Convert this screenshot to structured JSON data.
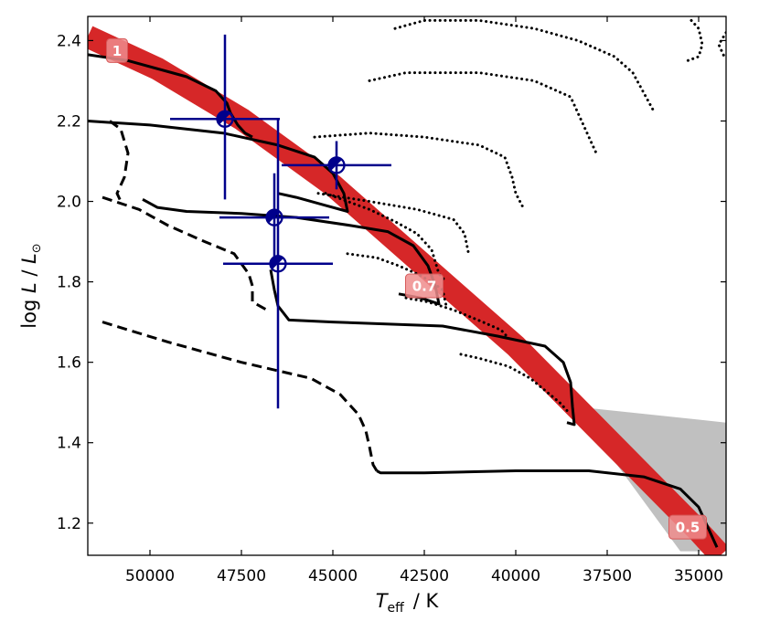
{
  "chart_data": {
    "type": "scatter",
    "title": "",
    "xlabel_main": "T",
    "xlabel_sub": "eff",
    "xlabel_unit": "/  K",
    "ylabel_prefix": "log ",
    "ylabel_L1": "L",
    "ylabel_slash": " / ",
    "ylabel_L2": "L",
    "ylabel_sun": "⊙",
    "xlim": [
      51700,
      34250
    ],
    "ylim": [
      1.12,
      2.46
    ],
    "x_ticks": [
      50000,
      47500,
      45000,
      42500,
      40000,
      37500,
      35000
    ],
    "x_tick_labels": [
      "50000",
      "47500",
      "45000",
      "42500",
      "40000",
      "37500",
      "35000"
    ],
    "y_ticks": [
      1.2,
      1.4,
      1.6,
      1.8,
      2.0,
      2.2,
      2.4
    ],
    "y_tick_labels": [
      "1.2",
      "1.4",
      "1.6",
      "1.8",
      "2.0",
      "2.2",
      "2.4"
    ],
    "red_band": {
      "color": "#d62728",
      "points": [
        [
          51700,
          2.41
        ],
        [
          49800,
          2.33
        ],
        [
          47500,
          2.205
        ],
        [
          45000,
          2.04
        ],
        [
          42500,
          1.84
        ],
        [
          40000,
          1.64
        ],
        [
          37500,
          1.41
        ],
        [
          35000,
          1.18
        ],
        [
          34400,
          1.12
        ]
      ],
      "markers": [
        {
          "label": "1",
          "x": 50900,
          "y": 2.375
        },
        {
          "label": "0.7",
          "x": 42500,
          "y": 1.79
        },
        {
          "label": "0.5",
          "x": 35300,
          "y": 1.19
        }
      ]
    },
    "shaded_region": {
      "color": "#c0c0c0",
      "points": [
        [
          38400,
          1.49
        ],
        [
          34250,
          1.45
        ],
        [
          34250,
          1.13
        ],
        [
          35500,
          1.13
        ]
      ]
    },
    "series": [
      {
        "name": "track_solid_1",
        "style": "solid",
        "points": [
          [
            51700,
            2.365
          ],
          [
            50600,
            2.35
          ],
          [
            49000,
            2.31
          ],
          [
            48200,
            2.275
          ],
          [
            47900,
            2.245
          ],
          [
            47800,
            2.22
          ],
          [
            47600,
            2.19
          ],
          [
            47400,
            2.17
          ],
          [
            47200,
            2.16
          ]
        ]
      },
      {
        "name": "track_solid_2",
        "style": "solid",
        "points": [
          [
            51700,
            2.2
          ],
          [
            50000,
            2.19
          ],
          [
            48000,
            2.17
          ],
          [
            46500,
            2.14
          ],
          [
            45500,
            2.11
          ],
          [
            45000,
            2.07
          ],
          [
            44700,
            2.02
          ],
          [
            44600,
            1.975
          ],
          [
            45200,
            1.99
          ],
          [
            46000,
            2.01
          ],
          [
            46500,
            2.02
          ]
        ]
      },
      {
        "name": "track_solid_3",
        "style": "solid",
        "points": [
          [
            50200,
            2.005
          ],
          [
            49800,
            1.985
          ],
          [
            49000,
            1.975
          ],
          [
            47500,
            1.97
          ],
          [
            46000,
            1.96
          ],
          [
            44500,
            1.94
          ],
          [
            43500,
            1.925
          ],
          [
            42800,
            1.89
          ],
          [
            42400,
            1.84
          ],
          [
            42200,
            1.79
          ],
          [
            42100,
            1.745
          ],
          [
            42600,
            1.76
          ],
          [
            43200,
            1.77
          ]
        ]
      },
      {
        "name": "track_solid_4",
        "style": "solid",
        "points": [
          [
            46700,
            1.83
          ],
          [
            46600,
            1.78
          ],
          [
            46500,
            1.74
          ],
          [
            46200,
            1.705
          ],
          [
            45000,
            1.7
          ],
          [
            42000,
            1.69
          ],
          [
            40500,
            1.665
          ],
          [
            39200,
            1.64
          ],
          [
            38700,
            1.6
          ],
          [
            38500,
            1.55
          ],
          [
            38450,
            1.49
          ],
          [
            38400,
            1.445
          ],
          [
            38600,
            1.45
          ]
        ]
      },
      {
        "name": "track_solid_5",
        "style": "solid",
        "points": [
          [
            43800,
            1.33
          ],
          [
            43700,
            1.325
          ],
          [
            42500,
            1.325
          ],
          [
            40000,
            1.33
          ],
          [
            38000,
            1.33
          ],
          [
            36500,
            1.315
          ],
          [
            35500,
            1.285
          ],
          [
            35000,
            1.24
          ],
          [
            34700,
            1.18
          ],
          [
            34500,
            1.14
          ]
        ]
      },
      {
        "name": "track_dashed_1",
        "style": "dashed",
        "points": [
          [
            51100,
            2.2
          ],
          [
            50800,
            2.18
          ],
          [
            50600,
            2.12
          ],
          [
            50700,
            2.06
          ],
          [
            50900,
            2.02
          ],
          [
            50800,
            2.0
          ]
        ]
      },
      {
        "name": "track_dashed_2",
        "style": "dashed",
        "points": [
          [
            51300,
            2.01
          ],
          [
            50300,
            1.98
          ],
          [
            49500,
            1.94
          ],
          [
            48500,
            1.9
          ],
          [
            47700,
            1.87
          ],
          [
            47300,
            1.82
          ],
          [
            47200,
            1.79
          ],
          [
            47200,
            1.75
          ],
          [
            46800,
            1.73
          ]
        ]
      },
      {
        "name": "track_dashed_3",
        "style": "dashed",
        "points": [
          [
            51300,
            1.7
          ],
          [
            49500,
            1.65
          ],
          [
            47500,
            1.6
          ],
          [
            45600,
            1.56
          ],
          [
            44800,
            1.52
          ],
          [
            44300,
            1.47
          ],
          [
            44100,
            1.43
          ],
          [
            44000,
            1.39
          ],
          [
            43900,
            1.345
          ],
          [
            43800,
            1.33
          ]
        ]
      },
      {
        "name": "track_dotted_1",
        "style": "dotted",
        "points": [
          [
            43300,
            2.43
          ],
          [
            42500,
            2.45
          ],
          [
            41000,
            2.45
          ],
          [
            39500,
            2.43
          ],
          [
            38300,
            2.4
          ],
          [
            37300,
            2.36
          ],
          [
            36800,
            2.32
          ],
          [
            36500,
            2.27
          ],
          [
            36200,
            2.22
          ]
        ]
      },
      {
        "name": "track_dotted_2",
        "style": "dotted",
        "points": [
          [
            44000,
            2.3
          ],
          [
            43000,
            2.32
          ],
          [
            41000,
            2.32
          ],
          [
            39500,
            2.3
          ],
          [
            38500,
            2.26
          ],
          [
            38200,
            2.2
          ],
          [
            38000,
            2.16
          ],
          [
            37800,
            2.12
          ]
        ]
      },
      {
        "name": "track_dotted_3",
        "style": "dotted",
        "points": [
          [
            45500,
            2.16
          ],
          [
            44000,
            2.17
          ],
          [
            42500,
            2.16
          ],
          [
            41000,
            2.14
          ],
          [
            40300,
            2.11
          ],
          [
            40100,
            2.06
          ],
          [
            40000,
            2.02
          ],
          [
            39800,
            1.985
          ]
        ]
      },
      {
        "name": "track_dotted_4",
        "style": "dotted",
        "points": [
          [
            45400,
            2.02
          ],
          [
            44000,
            2.0
          ],
          [
            42700,
            1.98
          ],
          [
            41700,
            1.955
          ],
          [
            41400,
            1.92
          ],
          [
            41300,
            1.875
          ]
        ]
      },
      {
        "name": "track_dotted_5",
        "style": "dotted",
        "points": [
          [
            45200,
            2.02
          ],
          [
            44600,
            2.0
          ],
          [
            44000,
            1.98
          ],
          [
            43300,
            1.95
          ],
          [
            42700,
            1.92
          ],
          [
            42300,
            1.88
          ],
          [
            42200,
            1.85
          ],
          [
            42100,
            1.82
          ],
          [
            41900,
            1.8
          ]
        ]
      },
      {
        "name": "track_dotted_6",
        "style": "dotted",
        "points": [
          [
            44600,
            1.87
          ],
          [
            43800,
            1.86
          ],
          [
            43200,
            1.84
          ],
          [
            42700,
            1.82
          ],
          [
            42300,
            1.8
          ],
          [
            42000,
            1.78
          ],
          [
            41900,
            1.74
          ]
        ]
      },
      {
        "name": "track_dotted_7",
        "style": "dotted",
        "points": [
          [
            43000,
            1.76
          ],
          [
            42400,
            1.75
          ],
          [
            41700,
            1.73
          ],
          [
            40900,
            1.7
          ],
          [
            40400,
            1.68
          ],
          [
            40200,
            1.66
          ]
        ]
      },
      {
        "name": "track_dotted_8",
        "style": "dotted",
        "points": [
          [
            41500,
            1.62
          ],
          [
            41000,
            1.61
          ],
          [
            40200,
            1.59
          ],
          [
            39600,
            1.56
          ],
          [
            39200,
            1.53
          ],
          [
            38800,
            1.5
          ],
          [
            38600,
            1.48
          ]
        ]
      },
      {
        "name": "track_dotted_9",
        "style": "dotted",
        "points": [
          [
            35200,
            2.45
          ],
          [
            35000,
            2.43
          ],
          [
            34900,
            2.39
          ],
          [
            35000,
            2.36
          ],
          [
            35300,
            2.35
          ]
        ]
      },
      {
        "name": "track_dotted_10",
        "style": "dotted",
        "points": [
          [
            34250,
            2.42
          ],
          [
            34450,
            2.39
          ],
          [
            34300,
            2.36
          ]
        ]
      }
    ],
    "data_points": [
      {
        "x": 47950,
        "y": 2.205,
        "xerr": [
          1500,
          1500
        ],
        "yerr": [
          0.2,
          0.21
        ]
      },
      {
        "x": 44900,
        "y": 2.09,
        "xerr": [
          1500,
          1500
        ],
        "yerr": [
          0.06,
          0.06
        ]
      },
      {
        "x": 46600,
        "y": 1.96,
        "xerr": [
          1500,
          1500
        ],
        "yerr": [
          0.11,
          0.11
        ]
      },
      {
        "x": 46500,
        "y": 1.845,
        "xerr": [
          1500,
          1500
        ],
        "yerr": [
          0.36,
          0.36
        ]
      }
    ],
    "point_color": "#00008b"
  }
}
